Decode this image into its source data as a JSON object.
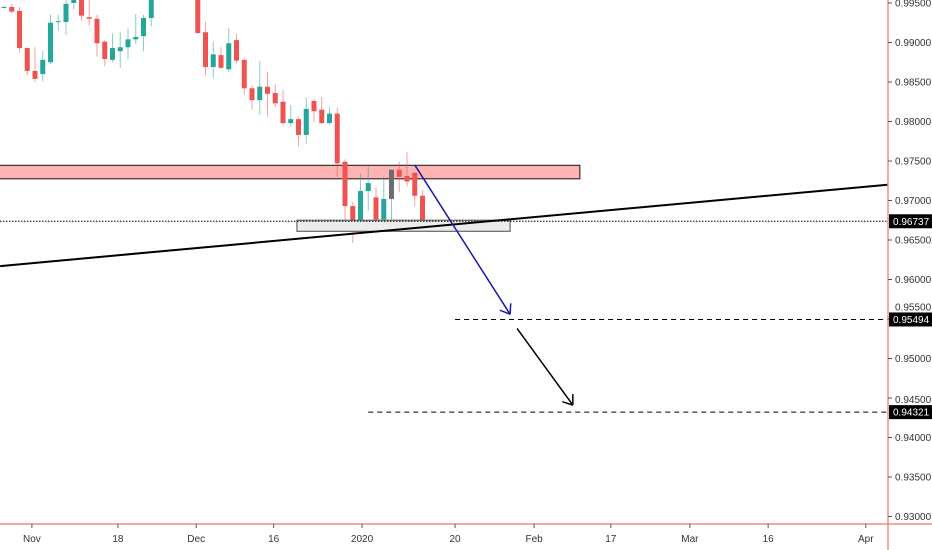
{
  "chart_data": {
    "type": "candlestick",
    "title": "",
    "colors": {
      "up": "#26a69a",
      "down": "#ef5350",
      "axis": "#f28b82",
      "zone": "#ffb3b3",
      "support_zone": "#ececec",
      "arrow_blue": "#1a1aa6"
    },
    "ylim": [
      0.9275,
      0.9954
    ],
    "y_ticks": [
      "0.99500",
      "0.99000",
      "0.98500",
      "0.98000",
      "0.97500",
      "0.97000",
      "0.96500",
      "0.96000",
      "0.95500",
      "0.95000",
      "0.94500",
      "0.94000",
      "0.93500",
      "0.93000"
    ],
    "x_ticks": [
      {
        "label": "Nov",
        "index": 3.6
      },
      {
        "label": "18",
        "index": 14.7
      },
      {
        "label": "Dec",
        "index": 24.8
      },
      {
        "label": "16",
        "index": 34.8
      },
      {
        "label": "2020",
        "index": 46.2
      },
      {
        "label": "20",
        "index": 58.2
      },
      {
        "label": "Feb",
        "index": 68.4
      },
      {
        "label": "17",
        "index": 78.3
      },
      {
        "label": "Mar",
        "index": 88.5
      },
      {
        "label": "16",
        "index": 98.6
      },
      {
        "label": "Apr",
        "index": 111.2
      }
    ],
    "price_labels": [
      {
        "label": "0.96737",
        "price": 0.96737,
        "style": "dotted",
        "from_index": -1
      },
      {
        "label": "0.95494",
        "price": 0.95494,
        "style": "dashed",
        "from_index": 58.2
      },
      {
        "label": "0.94321",
        "price": 0.94321,
        "style": "dashed",
        "from_index": 47
      }
    ],
    "zones": [
      {
        "name": "resistance-zone",
        "from_index": -1,
        "to_index": 74.3,
        "top": 0.97445,
        "bottom": 0.97275
      },
      {
        "name": "support-zone",
        "from_index": 37.8,
        "to_index": 65.3,
        "top": 0.9675,
        "bottom": 0.9661
      }
    ],
    "trendline": {
      "from": [
        -0.5,
        0.9617
      ],
      "to": [
        114,
        0.972
      ]
    },
    "arrows": [
      {
        "name": "projection-arrow-1",
        "from": [
          53,
          0.9745
        ],
        "to": [
          65.3,
          0.9556
        ],
        "color": "#1a1aa6"
      },
      {
        "name": "projection-arrow-2",
        "from": [
          66.2,
          0.9538
        ],
        "to": [
          73.4,
          0.9441
        ],
        "color": "#000000"
      }
    ],
    "candles": [
      [
        0,
        0.9944,
        0.9946,
        0.9943,
        0.9945
      ],
      [
        1,
        0.9945,
        0.9949,
        0.9937,
        0.9939
      ],
      [
        2,
        0.994,
        0.9945,
        0.9887,
        0.9893
      ],
      [
        3,
        0.9893,
        0.9894,
        0.9859,
        0.9864
      ],
      [
        4,
        0.9864,
        0.9894,
        0.985,
        0.9854
      ],
      [
        5,
        0.986,
        0.9889,
        0.9851,
        0.9878
      ],
      [
        6,
        0.9875,
        0.9935,
        0.9873,
        0.9925
      ],
      [
        7,
        0.9926,
        0.9935,
        0.9915,
        0.9927
      ],
      [
        8,
        0.9926,
        0.9954,
        0.9909,
        0.9949
      ],
      [
        9,
        0.995,
        0.996,
        0.9942,
        0.9954
      ],
      [
        10,
        0.996,
        0.9965,
        0.9927,
        0.9934
      ],
      [
        11,
        0.9932,
        0.996,
        0.9921,
        0.993
      ],
      [
        12,
        0.993,
        0.9935,
        0.9882,
        0.9899
      ],
      [
        13,
        0.9901,
        0.9903,
        0.987,
        0.9879
      ],
      [
        14,
        0.9878,
        0.9911,
        0.9875,
        0.9893
      ],
      [
        15,
        0.9889,
        0.9913,
        0.9868,
        0.9894
      ],
      [
        16,
        0.9894,
        0.9918,
        0.9879,
        0.9904
      ],
      [
        17,
        0.9904,
        0.9936,
        0.9898,
        0.9907
      ],
      [
        18,
        0.9908,
        0.9935,
        0.9889,
        0.9931
      ],
      [
        19,
        0.9931,
        0.997,
        0.992,
        0.996
      ],
      [
        25,
        0.9965,
        0.997,
        0.9911,
        0.9912
      ],
      [
        26,
        0.9913,
        0.9926,
        0.9858,
        0.9869
      ],
      [
        27,
        0.9869,
        0.9901,
        0.9855,
        0.9885
      ],
      [
        28,
        0.9884,
        0.9894,
        0.9866,
        0.9868
      ],
      [
        29,
        0.9866,
        0.9918,
        0.9863,
        0.9899
      ],
      [
        30,
        0.9903,
        0.9911,
        0.9874,
        0.9877
      ],
      [
        31,
        0.9878,
        0.988,
        0.9834,
        0.9842
      ],
      [
        32,
        0.9842,
        0.9846,
        0.9815,
        0.9827
      ],
      [
        33,
        0.9827,
        0.9877,
        0.9808,
        0.9844
      ],
      [
        34,
        0.9844,
        0.9863,
        0.9806,
        0.9835
      ],
      [
        35,
        0.9836,
        0.9847,
        0.9818,
        0.9823
      ],
      [
        36,
        0.9825,
        0.984,
        0.9796,
        0.9798
      ],
      [
        37,
        0.9798,
        0.9821,
        0.9794,
        0.9803
      ],
      [
        38,
        0.9803,
        0.9806,
        0.9769,
        0.9783
      ],
      [
        39,
        0.9783,
        0.983,
        0.9772,
        0.9816
      ],
      [
        40,
        0.9826,
        0.9829,
        0.9799,
        0.9813
      ],
      [
        41,
        0.9815,
        0.9831,
        0.9797,
        0.9798
      ],
      [
        42,
        0.9798,
        0.9818,
        0.9797,
        0.981
      ],
      [
        43,
        0.981,
        0.9818,
        0.973,
        0.9747
      ],
      [
        44,
        0.9749,
        0.9752,
        0.9673,
        0.9693
      ],
      [
        45,
        0.9693,
        0.9698,
        0.9646,
        0.9673
      ],
      [
        46,
        0.9672,
        0.9734,
        0.9672,
        0.9712
      ],
      [
        47,
        0.9712,
        0.9743,
        0.9687,
        0.9722
      ],
      [
        48,
        0.9704,
        0.9717,
        0.9676,
        0.9676
      ],
      [
        49,
        0.9676,
        0.973,
        0.9676,
        0.9702
      ],
      [
        50,
        0.9702,
        0.9739,
        0.9665,
        0.9739
      ],
      [
        51,
        0.9739,
        0.9749,
        0.9711,
        0.973
      ],
      [
        52,
        0.9731,
        0.9761,
        0.9718,
        0.9724
      ],
      [
        53,
        0.9735,
        0.9736,
        0.9693,
        0.9706
      ],
      [
        54,
        0.9706,
        0.9713,
        0.9665,
        0.9673
      ],
      [
        55,
        0.9674,
        0.9675,
        0.9668,
        0.9675
      ]
    ],
    "candle_fields": [
      "index",
      "open",
      "high",
      "low",
      "close"
    ]
  }
}
